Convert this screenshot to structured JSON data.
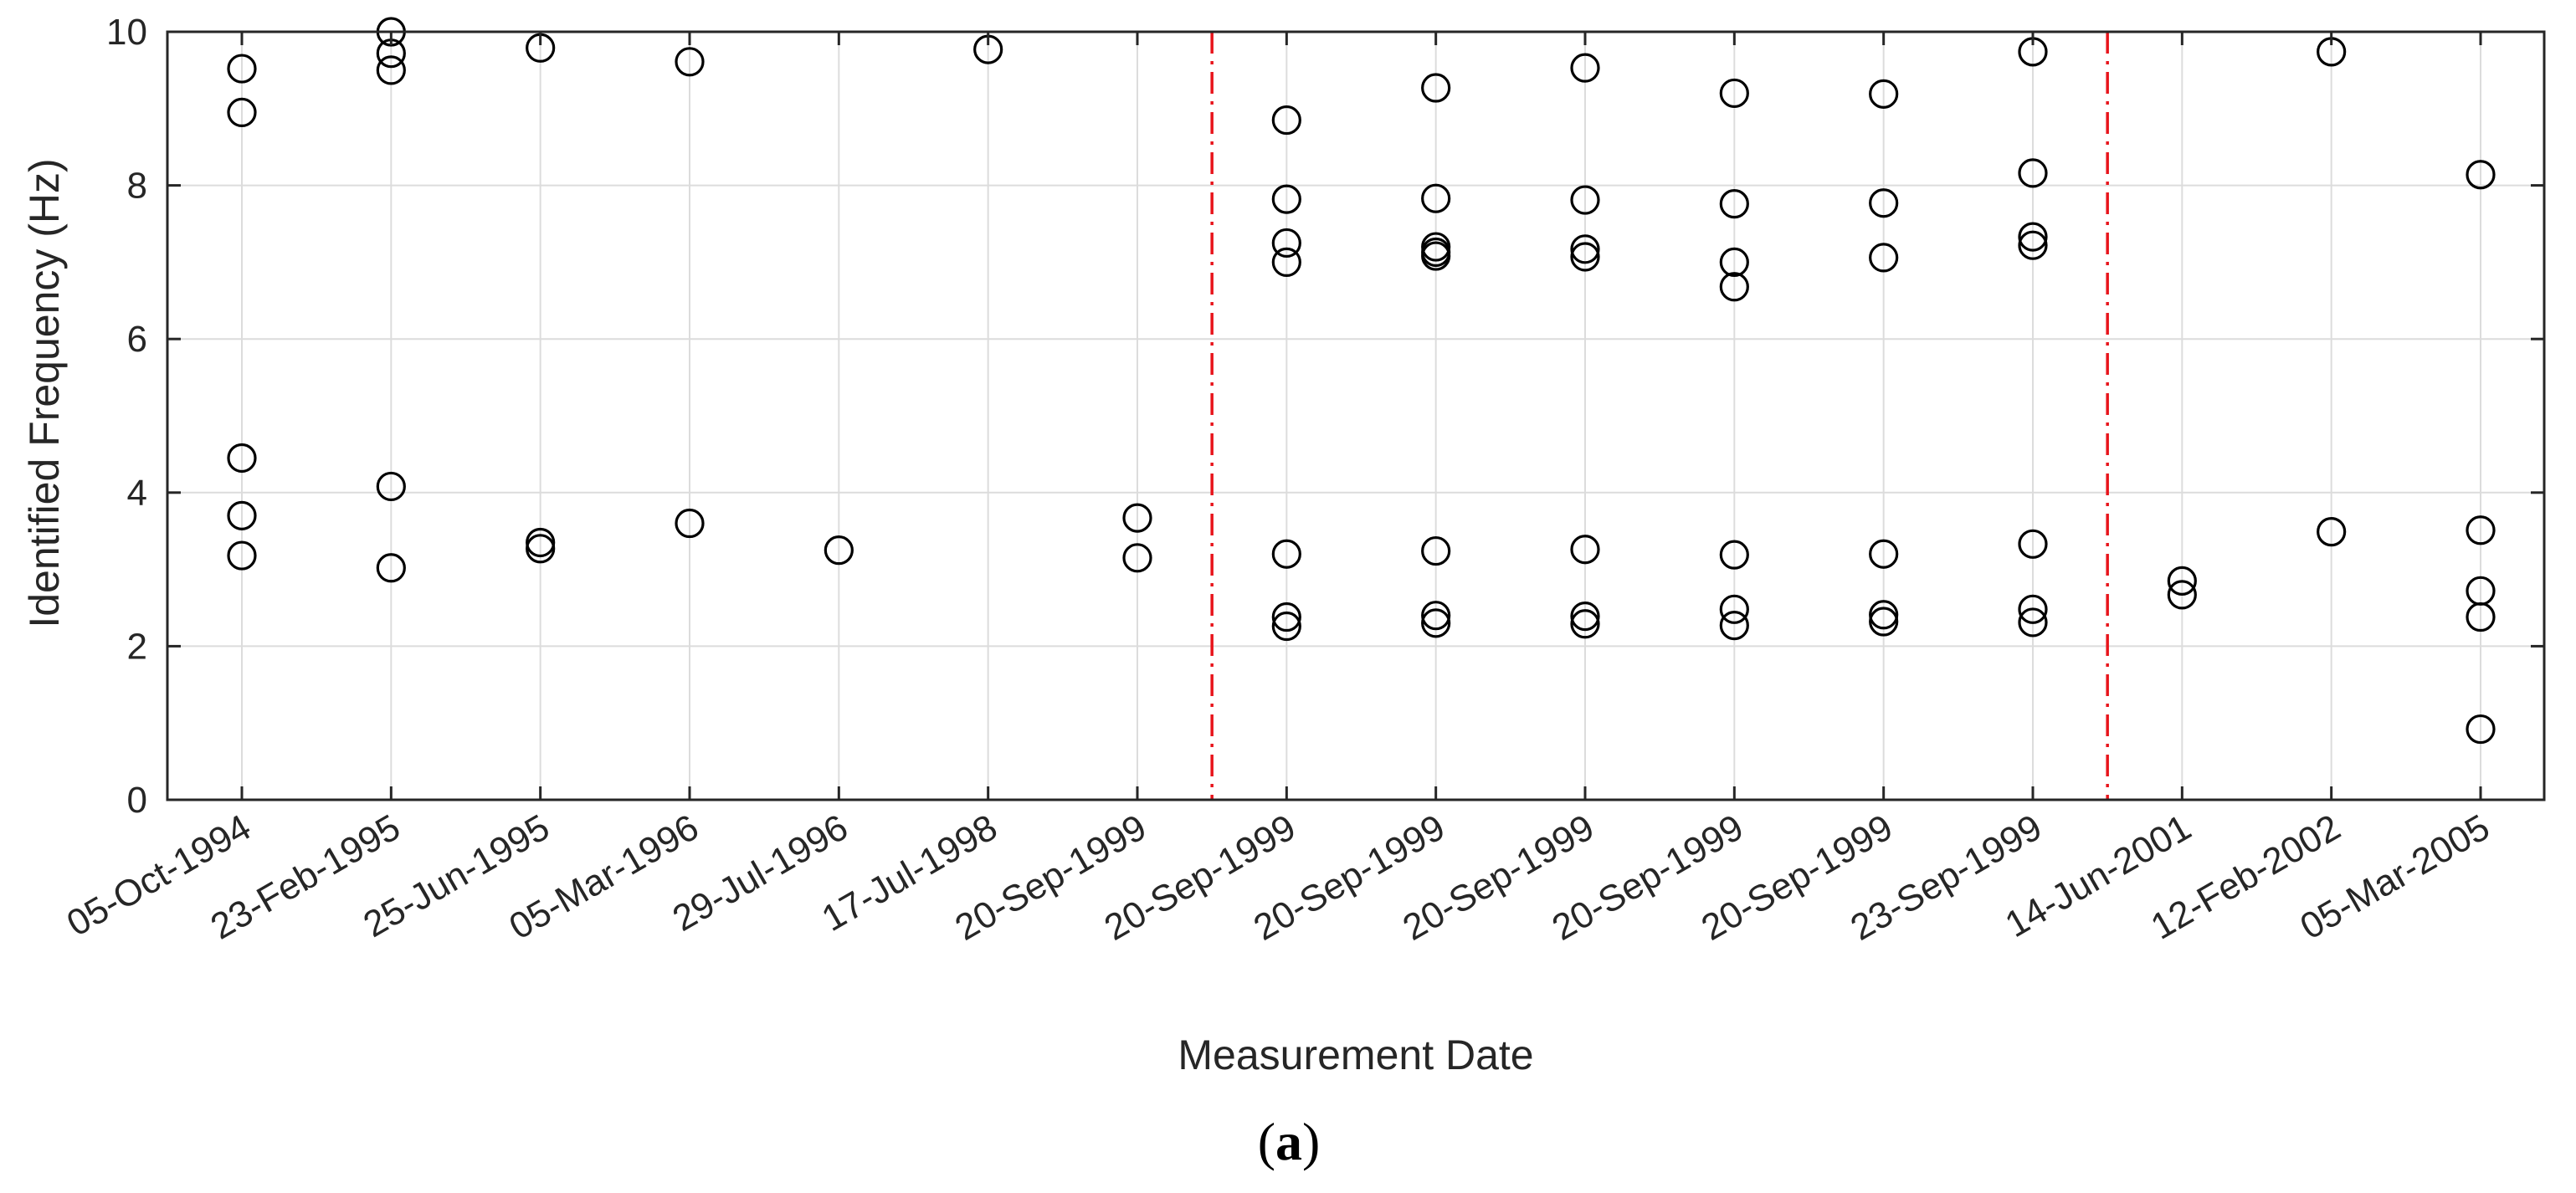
{
  "panel_label": {
    "open": "(",
    "letter": "a",
    "close": ")"
  },
  "chart_data": {
    "type": "scatter",
    "xlabel": "Measurement Date",
    "ylabel": "Identified Frequency (Hz)",
    "categories": [
      "05-Oct-1994",
      "23-Feb-1995",
      "25-Jun-1995",
      "05-Mar-1996",
      "29-Jul-1996",
      "17-Jul-1998",
      "20-Sep-1999",
      "20-Sep-1999",
      "20-Sep-1999",
      "20-Sep-1999",
      "20-Sep-1999",
      "20-Sep-1999",
      "23-Sep-1999",
      "14-Jun-2001",
      "12-Feb-2002",
      "05-Mar-2005"
    ],
    "ylim": [
      0,
      10
    ],
    "yticks": [
      0,
      2,
      4,
      6,
      8,
      10
    ],
    "grid": true,
    "marker": "open-circle",
    "marker_color": "#000000",
    "separators_after_category_index": [
      6.5,
      12.5
    ],
    "separator_color": "#e8141b",
    "separator_style": "dash-dot",
    "points": [
      {
        "category_index": 0,
        "values": [
          9.52,
          8.95,
          4.45,
          3.7,
          3.18
        ]
      },
      {
        "category_index": 1,
        "values": [
          10.0,
          9.72,
          9.5,
          4.08,
          3.02
        ]
      },
      {
        "category_index": 2,
        "values": [
          9.79,
          3.35,
          3.27
        ]
      },
      {
        "category_index": 3,
        "values": [
          9.61,
          3.6
        ]
      },
      {
        "category_index": 4,
        "values": [
          3.25
        ]
      },
      {
        "category_index": 5,
        "values": [
          9.77
        ]
      },
      {
        "category_index": 6,
        "values": [
          3.67,
          3.15
        ]
      },
      {
        "category_index": 7,
        "values": [
          8.85,
          7.82,
          7.25,
          7.0,
          3.2,
          2.38,
          2.26
        ]
      },
      {
        "category_index": 8,
        "values": [
          9.27,
          7.83,
          7.2,
          7.13,
          7.08,
          3.24,
          2.4,
          2.3
        ]
      },
      {
        "category_index": 9,
        "values": [
          9.53,
          7.81,
          7.17,
          7.07,
          3.26,
          2.39,
          2.29
        ]
      },
      {
        "category_index": 10,
        "values": [
          9.2,
          7.76,
          7.0,
          6.68,
          3.19,
          2.48,
          2.27
        ]
      },
      {
        "category_index": 11,
        "values": [
          9.19,
          7.77,
          7.06,
          3.2,
          2.41,
          2.32
        ]
      },
      {
        "category_index": 12,
        "values": [
          9.74,
          8.16,
          7.33,
          7.22,
          3.33,
          2.48,
          2.31
        ]
      },
      {
        "category_index": 13,
        "values": [
          2.85,
          2.67
        ]
      },
      {
        "category_index": 14,
        "values": [
          9.74,
          3.49
        ]
      },
      {
        "category_index": 15,
        "values": [
          8.14,
          3.51,
          2.72,
          2.38,
          0.92
        ]
      }
    ]
  }
}
